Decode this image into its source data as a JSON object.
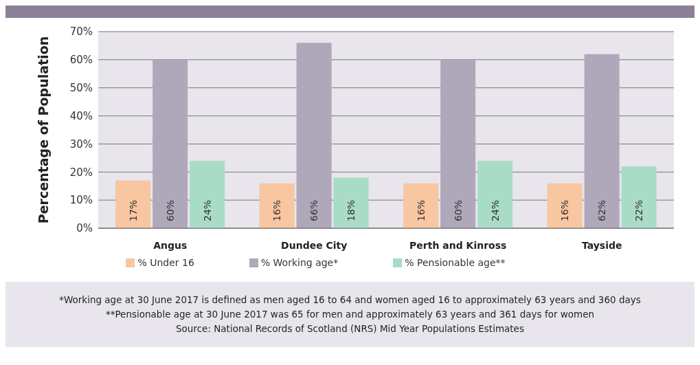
{
  "chart_data": {
    "type": "bar",
    "ylabel": "Percentage of Population",
    "categories": [
      "Angus",
      "Dundee City",
      "Perth and Kinross",
      "Tayside"
    ],
    "series": [
      {
        "name": "% Under 16",
        "color": "#f8c6a0",
        "values": [
          17,
          16,
          16,
          16
        ],
        "value_labels": [
          "17%",
          "16%",
          "16%",
          "16%"
        ]
      },
      {
        "name": "% Working age*",
        "color": "#afa8ba",
        "values": [
          60,
          66,
          60,
          62
        ],
        "value_labels": [
          "60%",
          "66%",
          "60%",
          "62%"
        ]
      },
      {
        "name": "% Pensionable age**",
        "color": "#a9dcc6",
        "values": [
          24,
          18,
          24,
          22
        ],
        "value_labels": [
          "24%",
          "18%",
          "24%",
          "22%"
        ]
      }
    ],
    "ylim": [
      0,
      70
    ],
    "yticks": [
      {
        "value": 0,
        "label": "0%"
      },
      {
        "value": 10,
        "label": "10%"
      },
      {
        "value": 20,
        "label": "20%"
      },
      {
        "value": 30,
        "label": "30%"
      },
      {
        "value": 40,
        "label": "40%"
      },
      {
        "value": 50,
        "label": "50%"
      },
      {
        "value": 60,
        "label": "60%"
      },
      {
        "value": 70,
        "label": "70%"
      }
    ],
    "grid": "y",
    "legend": "bottom",
    "annotations": [
      "*Working age at 30 June 2017 is defined as men aged 16 to 64 and women aged 16 to approximately 63 years and 360 days",
      "**Pensionable age at 30 June 2017 was 65 for men and approximately 63 years and 361 days for women",
      "Source: National Records of Scotland (NRS) Mid Year Populations Estimates"
    ]
  }
}
